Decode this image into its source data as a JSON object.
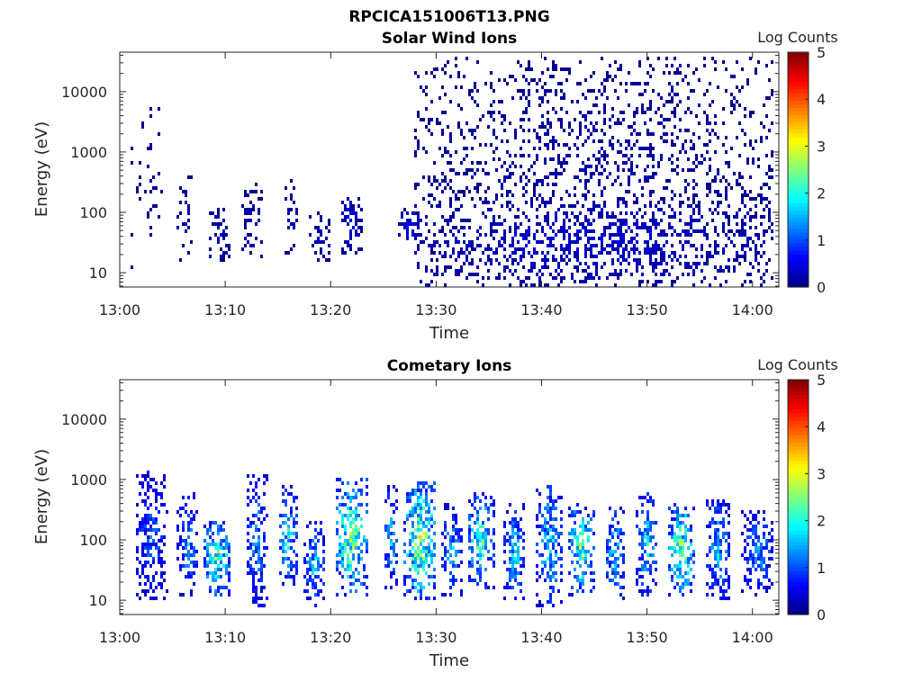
{
  "figure": {
    "title": "RPCICA151006T13.PNG"
  },
  "chart_data": [
    {
      "type": "heatmap",
      "title": "Solar Wind Ions",
      "xlabel": "Time",
      "ylabel": "Energy (eV)",
      "x_ticks": [
        "13:00",
        "13:10",
        "13:20",
        "13:30",
        "13:40",
        "13:50",
        "14:00"
      ],
      "x_tick_minutes": [
        0,
        10,
        20,
        30,
        40,
        50,
        60
      ],
      "xlim_minutes": [
        0,
        62.5
      ],
      "y_scale": "log",
      "ylim": [
        5.8,
        45000
      ],
      "y_ticks": [
        "10",
        "100",
        "1000",
        "10000"
      ],
      "y_tick_values": [
        10,
        100,
        1000,
        10000
      ],
      "colorbar": {
        "label": "Log Counts",
        "range": [
          0,
          5
        ],
        "ticks": [
          "0",
          "1",
          "2",
          "3",
          "4",
          "5"
        ],
        "colormap": "jet"
      },
      "count_regions": [
        {
          "t_start": 1,
          "t_end": 4,
          "e_low": 12,
          "e_high": 6000,
          "log_counts": 0.1,
          "density": 0.12
        },
        {
          "t_start": 5.5,
          "t_end": 7,
          "e_low": 15,
          "e_high": 400,
          "log_counts": 0.2,
          "density": 0.3
        },
        {
          "t_start": 8.5,
          "t_end": 10.5,
          "e_low": 15,
          "e_high": 120,
          "log_counts": 0.2,
          "density": 0.55
        },
        {
          "t_start": 11.5,
          "t_end": 13.5,
          "e_low": 18,
          "e_high": 300,
          "log_counts": 0.2,
          "density": 0.35
        },
        {
          "t_start": 15.5,
          "t_end": 17,
          "e_low": 20,
          "e_high": 400,
          "log_counts": 0.2,
          "density": 0.35
        },
        {
          "t_start": 18,
          "t_end": 20,
          "e_low": 15,
          "e_high": 100,
          "log_counts": 0.2,
          "density": 0.45
        },
        {
          "t_start": 21,
          "t_end": 23,
          "e_low": 20,
          "e_high": 250,
          "log_counts": 0.3,
          "density": 0.6
        },
        {
          "t_start": 26.5,
          "t_end": 28.5,
          "e_low": 30,
          "e_high": 120,
          "log_counts": 0.4,
          "density": 0.7
        },
        {
          "t_start": 28,
          "t_end": 62,
          "e_low": 6,
          "e_high": 40000,
          "log_counts": 0.15,
          "density": 0.3
        },
        {
          "t_start": 28,
          "t_end": 62,
          "e_low": 6,
          "e_high": 200,
          "log_counts": 0.3,
          "density": 0.5
        }
      ]
    },
    {
      "type": "heatmap",
      "title": "Cometary Ions",
      "xlabel": "Time",
      "ylabel": "Energy (eV)",
      "x_ticks": [
        "13:00",
        "13:10",
        "13:20",
        "13:30",
        "13:40",
        "13:50",
        "14:00"
      ],
      "x_tick_minutes": [
        0,
        10,
        20,
        30,
        40,
        50,
        60
      ],
      "xlim_minutes": [
        0,
        62.5
      ],
      "y_scale": "log",
      "ylim": [
        5.8,
        45000
      ],
      "y_ticks": [
        "10",
        "100",
        "1000",
        "10000"
      ],
      "y_tick_values": [
        10,
        100,
        1000,
        10000
      ],
      "colorbar": {
        "label": "Log Counts",
        "range": [
          0,
          5
        ],
        "ticks": [
          "0",
          "1",
          "2",
          "3",
          "4",
          "5"
        ],
        "colormap": "jet"
      },
      "count_regions": [
        {
          "t_start": 1.5,
          "t_end": 4.5,
          "e_low": 10,
          "e_high": 1500,
          "log_counts": 0.8,
          "density": 0.65
        },
        {
          "t_start": 5.5,
          "t_end": 7.5,
          "e_low": 12,
          "e_high": 600,
          "log_counts": 1.0,
          "density": 0.65
        },
        {
          "t_start": 8,
          "t_end": 10.5,
          "e_low": 12,
          "e_high": 200,
          "log_counts": 1.7,
          "density": 0.75
        },
        {
          "t_start": 12,
          "t_end": 14,
          "e_low": 8,
          "e_high": 1200,
          "log_counts": 1.0,
          "density": 0.65
        },
        {
          "t_start": 15,
          "t_end": 17,
          "e_low": 15,
          "e_high": 800,
          "log_counts": 1.3,
          "density": 0.65
        },
        {
          "t_start": 17.5,
          "t_end": 19.5,
          "e_low": 8,
          "e_high": 200,
          "log_counts": 1.2,
          "density": 0.7
        },
        {
          "t_start": 20.5,
          "t_end": 23.5,
          "e_low": 12,
          "e_high": 1000,
          "log_counts": 1.9,
          "density": 0.75
        },
        {
          "t_start": 25,
          "t_end": 26.5,
          "e_low": 15,
          "e_high": 800,
          "log_counts": 1.1,
          "density": 0.65
        },
        {
          "t_start": 27,
          "t_end": 30,
          "e_low": 10,
          "e_high": 900,
          "log_counts": 2.0,
          "density": 0.8
        },
        {
          "t_start": 30.5,
          "t_end": 32.5,
          "e_low": 12,
          "e_high": 400,
          "log_counts": 1.1,
          "density": 0.65
        },
        {
          "t_start": 33,
          "t_end": 35.5,
          "e_low": 15,
          "e_high": 600,
          "log_counts": 1.6,
          "density": 0.7
        },
        {
          "t_start": 36.5,
          "t_end": 38.5,
          "e_low": 10,
          "e_high": 400,
          "log_counts": 1.2,
          "density": 0.65
        },
        {
          "t_start": 39.5,
          "t_end": 42,
          "e_low": 8,
          "e_high": 800,
          "log_counts": 1.3,
          "density": 0.7
        },
        {
          "t_start": 42.5,
          "t_end": 45,
          "e_low": 12,
          "e_high": 400,
          "log_counts": 1.7,
          "density": 0.7
        },
        {
          "t_start": 46,
          "t_end": 48,
          "e_low": 10,
          "e_high": 400,
          "log_counts": 1.2,
          "density": 0.65
        },
        {
          "t_start": 49,
          "t_end": 51,
          "e_low": 12,
          "e_high": 600,
          "log_counts": 1.3,
          "density": 0.65
        },
        {
          "t_start": 52,
          "t_end": 54.5,
          "e_low": 12,
          "e_high": 400,
          "log_counts": 1.8,
          "density": 0.7
        },
        {
          "t_start": 55.5,
          "t_end": 58,
          "e_low": 10,
          "e_high": 500,
          "log_counts": 1.2,
          "density": 0.65
        },
        {
          "t_start": 59,
          "t_end": 62,
          "e_low": 12,
          "e_high": 300,
          "log_counts": 1.0,
          "density": 0.65
        }
      ]
    }
  ]
}
